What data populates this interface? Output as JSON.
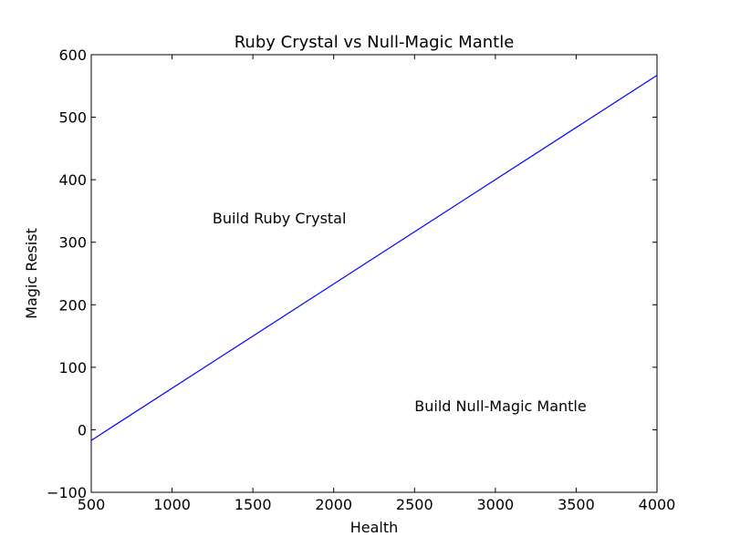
{
  "chart_data": {
    "type": "line",
    "title": "Ruby Crystal vs Null-Magic Mantle",
    "xlabel": "Health",
    "ylabel": "Magic Resist",
    "xlim": [
      500,
      4000
    ],
    "ylim": [
      -100,
      600
    ],
    "xticks": [
      500,
      1000,
      1500,
      2000,
      2500,
      3000,
      3500,
      4000
    ],
    "yticks": [
      -100,
      0,
      100,
      200,
      300,
      400,
      500,
      600
    ],
    "grid": false,
    "series": [
      {
        "color": "#0000ff",
        "x": [
          500,
          4000
        ],
        "y": [
          -17,
          567
        ]
      }
    ],
    "annotations": [
      {
        "text": "Build Ruby Crystal",
        "x": 1250,
        "y": 330
      },
      {
        "text": "Build Null-Magic Mantle",
        "x": 2500,
        "y": 30
      }
    ]
  }
}
